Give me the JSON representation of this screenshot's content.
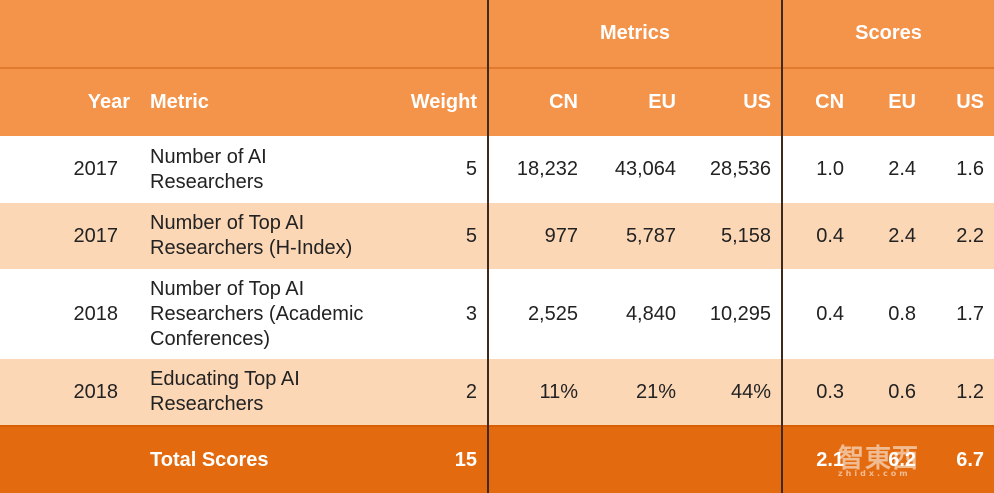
{
  "groups": {
    "metrics": "Metrics",
    "scores": "Scores"
  },
  "columns": {
    "year": "Year",
    "metric": "Metric",
    "weight": "Weight",
    "m_cn": "CN",
    "m_eu": "EU",
    "m_us": "US",
    "s_cn": "CN",
    "s_eu": "EU",
    "s_us": "US"
  },
  "rows": [
    {
      "year": "2017",
      "metric_line1": "Number of AI",
      "metric_line2": "Researchers",
      "metric_line3": "",
      "weight": "5",
      "m_cn": "18,232",
      "m_eu": "43,064",
      "m_us": "28,536",
      "s_cn": "1.0",
      "s_eu": "2.4",
      "s_us": "1.6"
    },
    {
      "year": "2017",
      "metric_line1": "Number of Top AI",
      "metric_line2": "Researchers (H-Index)",
      "metric_line3": "",
      "weight": "5",
      "m_cn": "977",
      "m_eu": "5,787",
      "m_us": "5,158",
      "s_cn": "0.4",
      "s_eu": "2.4",
      "s_us": "2.2"
    },
    {
      "year": "2018",
      "metric_line1": "Number of Top AI",
      "metric_line2": "Researchers (Academic",
      "metric_line3": "Conferences)",
      "weight": "3",
      "m_cn": "2,525",
      "m_eu": "4,840",
      "m_us": "10,295",
      "s_cn": "0.4",
      "s_eu": "0.8",
      "s_us": "1.7"
    },
    {
      "year": "2018",
      "metric_line1": "Educating Top AI",
      "metric_line2": "Researchers",
      "metric_line3": "",
      "weight": "2",
      "m_cn": "11%",
      "m_eu": "21%",
      "m_us": "44%",
      "s_cn": "0.3",
      "s_eu": "0.6",
      "s_us": "1.2"
    }
  ],
  "total": {
    "label": "Total Scores",
    "weight": "15",
    "s_cn": "2.1",
    "s_eu": "6.2",
    "s_us": "6.7"
  },
  "watermark": {
    "brand": "智東西",
    "sub": "zhidx.com"
  },
  "colors": {
    "header": "#f4934a",
    "total_row": "#e36a0e",
    "tint_row": "#fcd7b6"
  }
}
